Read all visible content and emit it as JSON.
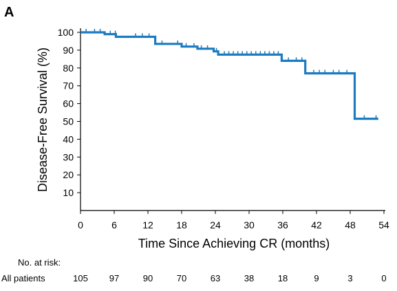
{
  "panel_label": "A",
  "colors": {
    "curve": "#1a7bc0",
    "axis": "#000000"
  },
  "chart_data": {
    "type": "line",
    "step": true,
    "ylabel": "Disease-Free Survival (%)",
    "xlabel": "Time Since Achieving CR (months)",
    "xlim": [
      0,
      54
    ],
    "ylim": [
      0,
      100
    ],
    "xticks": [
      0,
      6,
      12,
      18,
      24,
      30,
      36,
      42,
      48,
      54
    ],
    "yticks": [
      10,
      20,
      30,
      40,
      50,
      60,
      70,
      80,
      90,
      100
    ],
    "grid": false,
    "series": [
      {
        "points": [
          [
            0,
            100
          ],
          [
            4.3,
            100
          ],
          [
            4.3,
            99
          ],
          [
            6.3,
            99
          ],
          [
            6.3,
            97.5
          ],
          [
            13.3,
            97.5
          ],
          [
            13.3,
            93.5
          ],
          [
            18,
            93.5
          ],
          [
            18,
            92
          ],
          [
            20.8,
            92
          ],
          [
            20.8,
            90.8
          ],
          [
            23.7,
            90.8
          ],
          [
            23.7,
            89.3
          ],
          [
            24.5,
            89.3
          ],
          [
            24.5,
            87.5
          ],
          [
            35.8,
            87.5
          ],
          [
            35.8,
            84
          ],
          [
            40,
            84
          ],
          [
            40,
            77
          ],
          [
            48.8,
            77
          ],
          [
            48.8,
            51.5
          ],
          [
            53,
            51.5
          ]
        ],
        "censored": [
          [
            1,
            100
          ],
          [
            2.5,
            100
          ],
          [
            3.5,
            100
          ],
          [
            5.3,
            99
          ],
          [
            6.2,
            99
          ],
          [
            9.8,
            97.5
          ],
          [
            11,
            97.5
          ],
          [
            12.2,
            97.5
          ],
          [
            14.5,
            93.5
          ],
          [
            17.3,
            93.5
          ],
          [
            18.8,
            92
          ],
          [
            20.2,
            92
          ],
          [
            21.5,
            90.8
          ],
          [
            22.6,
            90.8
          ],
          [
            24.2,
            89.3
          ],
          [
            25.6,
            87.5
          ],
          [
            26.4,
            87.5
          ],
          [
            27.2,
            87.5
          ],
          [
            28,
            87.5
          ],
          [
            28.8,
            87.5
          ],
          [
            29.6,
            87.5
          ],
          [
            30.4,
            87.5
          ],
          [
            31.2,
            87.5
          ],
          [
            32,
            87.5
          ],
          [
            32.8,
            87.5
          ],
          [
            33.6,
            87.5
          ],
          [
            34.4,
            87.5
          ],
          [
            35.2,
            87.5
          ],
          [
            37,
            84
          ],
          [
            38.4,
            84
          ],
          [
            39.4,
            84
          ],
          [
            41.5,
            77
          ],
          [
            42.5,
            77
          ],
          [
            43.5,
            77
          ],
          [
            45,
            77
          ],
          [
            46,
            77
          ],
          [
            47.4,
            77
          ],
          [
            50.5,
            51.5
          ],
          [
            52.6,
            51.5
          ]
        ]
      }
    ]
  },
  "risk_table": {
    "title": "No. at risk:",
    "row_label": "All patients",
    "values": [
      "105",
      "97",
      "90",
      "70",
      "63",
      "38",
      "18",
      "9",
      "3",
      "0"
    ]
  }
}
